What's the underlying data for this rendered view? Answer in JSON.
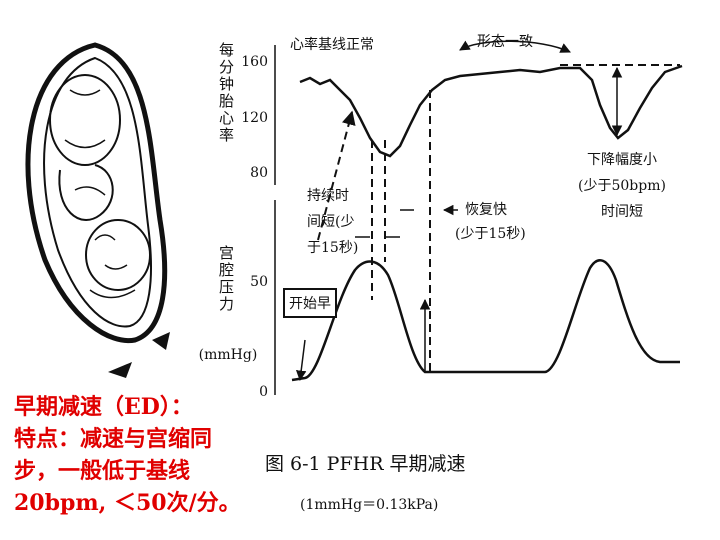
{
  "fhr_axis": {
    "label": "每分钟胎心率",
    "ticks": [
      "160",
      "120",
      "80"
    ]
  },
  "pressure_axis": {
    "label": "宫腔压力",
    "unit": "(mmHg)",
    "ticks": [
      "50",
      "0"
    ]
  },
  "annotations": {
    "baseline": "心率基线正常",
    "same_shape": "形态一致",
    "small_drop": [
      "下降幅度小",
      "(少于50bpm)",
      "时间短"
    ],
    "short_duration": [
      "持续时",
      "间短(少",
      "于15秒)"
    ],
    "fast_recovery": [
      "恢复快",
      "(少于15秒)"
    ],
    "early_onset": "开始早"
  },
  "caption": {
    "title": "图 6-1   PFHR 早期减速",
    "note": "(1mmHg＝0.13kPa)"
  },
  "notes": [
    "早期减速（ED）：",
    "特点：减速与宫缩同",
    "步，一般低于基线",
    "20bpm, ＜50次/分。"
  ]
}
